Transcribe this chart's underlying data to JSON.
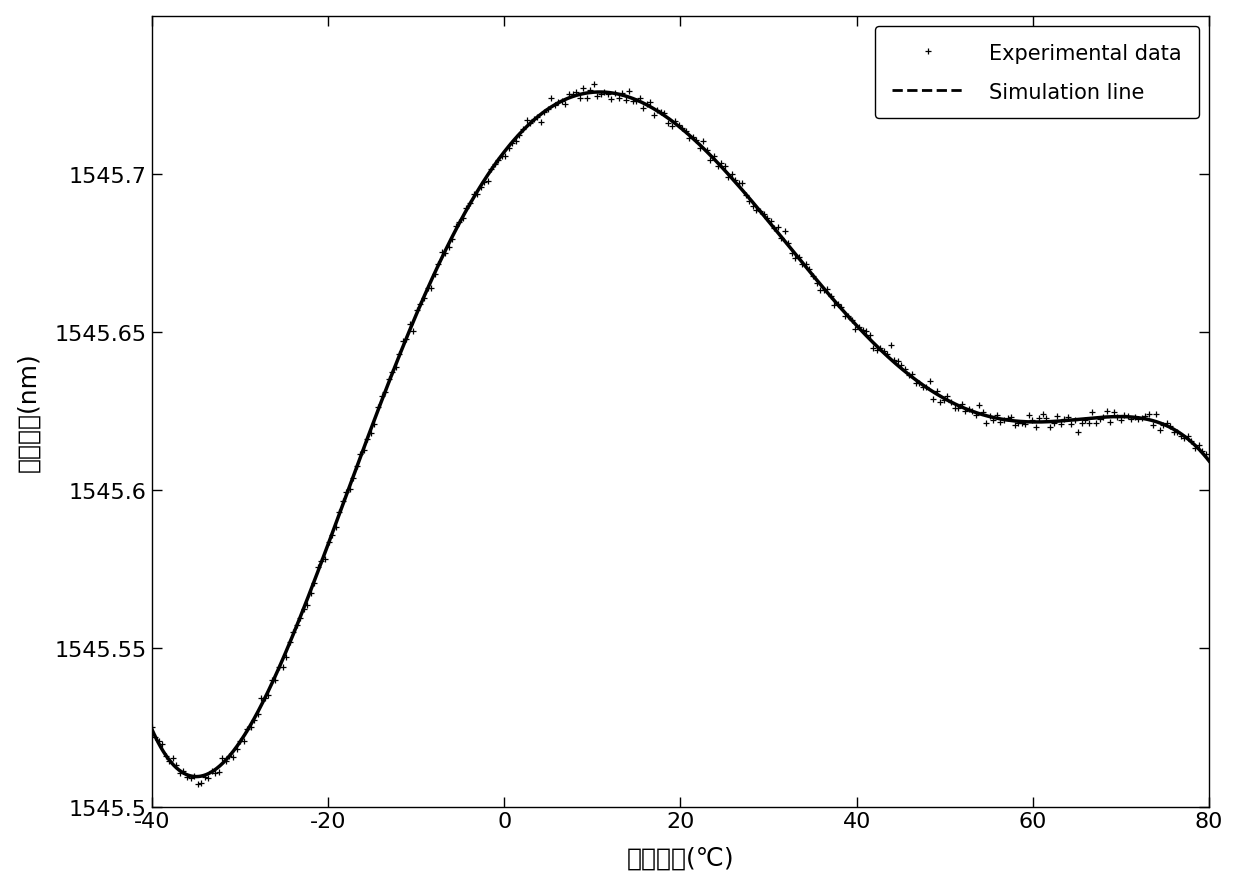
{
  "x_min": -40,
  "x_max": 80,
  "x_ticks": [
    -40,
    -20,
    0,
    20,
    40,
    60,
    80
  ],
  "y_min": 1545.5,
  "y_max": 1545.75,
  "y_ticks": [
    1545.5,
    1545.55,
    1545.6,
    1545.65,
    1545.7
  ],
  "xlabel": "光源温度(℃)",
  "ylabel": "平均波长(nm)",
  "legend_exp": "Experimental data",
  "legend_sim": "Simulation line",
  "ref_x": [
    -40,
    -35,
    -30,
    -25,
    -20,
    -15,
    -10,
    -7,
    -5,
    -3,
    0,
    3,
    5,
    8,
    10,
    13,
    15,
    20,
    25,
    30,
    35,
    40,
    45,
    50,
    55,
    60,
    65,
    70,
    75,
    80
  ],
  "ref_y": [
    1545.515,
    1545.522,
    1545.532,
    1545.548,
    1545.568,
    1545.6,
    1545.648,
    1545.675,
    1545.692,
    1545.708,
    1545.72,
    1545.724,
    1545.725,
    1545.724,
    1545.723,
    1545.72,
    1545.717,
    1545.71,
    1545.698,
    1545.682,
    1545.668,
    1545.651,
    1545.641,
    1545.633,
    1545.628,
    1545.624,
    1545.621,
    1545.618,
    1545.616,
    1545.614
  ],
  "background_color": "#ffffff",
  "line_color": "#000000",
  "dot_color": "#000000",
  "fig_width": 12.4,
  "fig_height": 8.87,
  "dpi": 100
}
